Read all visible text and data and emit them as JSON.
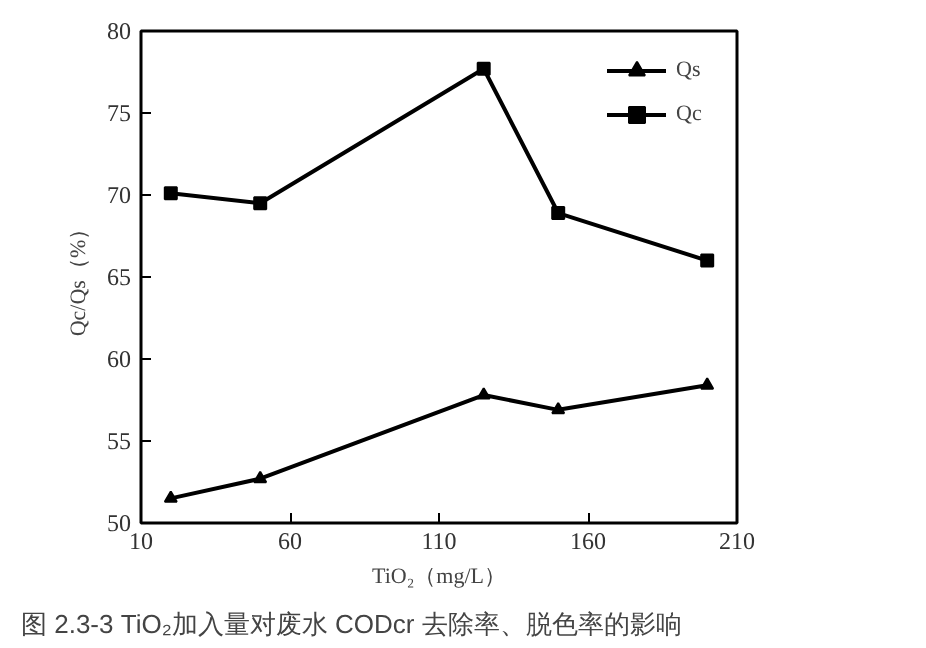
{
  "chart_data": {
    "type": "line",
    "xlabel": "TiO₂（mg/L）",
    "ylabel": "Qc/Qs（%）",
    "x": [
      20,
      50,
      125,
      150,
      200
    ],
    "series": [
      {
        "name": "Qs",
        "color": "#000000",
        "values": [
          51.5,
          52.7,
          57.8,
          56.9,
          58.4
        ],
        "marker": "triangle"
      },
      {
        "name": "Qc",
        "color": "#000000",
        "values": [
          70.1,
          69.5,
          77.7,
          68.9,
          66.0
        ],
        "marker": "square"
      }
    ],
    "xlim": [
      10,
      210
    ],
    "xticks": [
      10,
      60,
      110,
      160,
      210
    ],
    "ylim": [
      50,
      80
    ],
    "yticks": [
      50,
      55,
      60,
      65,
      70,
      75,
      80
    ],
    "grid": false,
    "legend": "top right",
    "line_style": "solid",
    "annotations": [
      "图 2.3-3 TiO₂加入量对废水 CODcr 去除率、脱色率的影响"
    ]
  }
}
